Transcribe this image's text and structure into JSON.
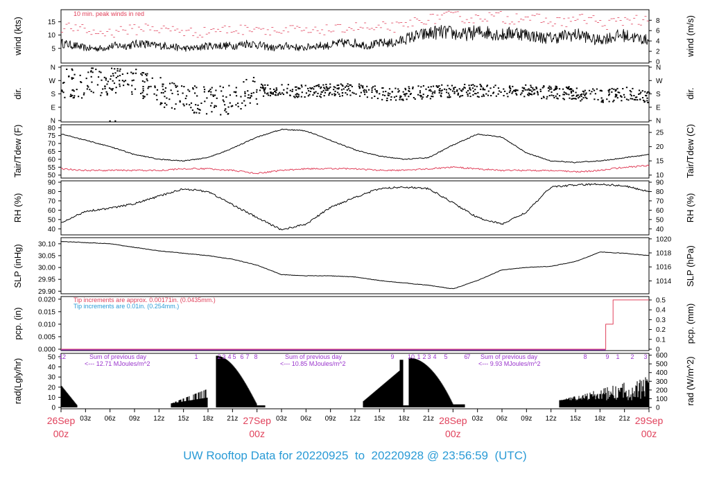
{
  "title": "UW Rooftop Data for 20220925  to  20220928 @ 23:56:59  (UTC)",
  "colors": {
    "title": "#2a9bd6",
    "red": "#e0405a",
    "blue": "#2a9bd6",
    "purple": "#9933cc",
    "black": "#000000"
  },
  "time_axis": {
    "ticks": [
      "03z",
      "06z",
      "09z",
      "12z",
      "15z",
      "18z",
      "21z",
      "03z",
      "06z",
      "09z",
      "12z",
      "15z",
      "18z",
      "21z",
      "03z",
      "06z",
      "09z",
      "12z",
      "15z",
      "18z",
      "21z"
    ],
    "days": [
      {
        "date": "26Sep",
        "hour": "00z"
      },
      {
        "date": "27Sep",
        "hour": "00z"
      },
      {
        "date": "28Sep",
        "hour": "00z"
      },
      {
        "date": "29Sep",
        "hour": "00z"
      }
    ]
  },
  "chart_data": [
    {
      "type": "line",
      "key": "wind",
      "ylabel_left": "wind (kts)",
      "ylabel_right": "wind (m/s)",
      "ticks_left": [
        "5",
        "10",
        "15"
      ],
      "ticks_right": [
        "0",
        "2",
        "4",
        "6",
        "8"
      ],
      "ylim": [
        0,
        19
      ],
      "annotation": "10 min. peak winds in red",
      "series": [
        {
          "values": [
            7,
            6,
            5,
            5,
            6,
            6,
            7,
            6,
            6,
            5,
            5,
            6,
            6,
            6,
            7,
            6,
            5,
            6,
            5,
            6,
            6,
            7,
            7,
            6,
            7,
            7,
            9,
            10,
            11,
            11,
            10,
            11,
            11,
            10,
            11,
            10,
            9,
            9,
            10,
            10,
            8,
            9,
            10,
            9,
            8
          ]
        }
      ]
    },
    {
      "type": "scatter",
      "key": "dir",
      "ylabel_left": "dir.",
      "ylabel_right": "dir.",
      "ticks": [
        "N",
        "E",
        "S",
        "W",
        "N"
      ],
      "ylim": [
        0,
        360
      ]
    },
    {
      "type": "line",
      "key": "temp",
      "ylabel_left": "Tair/Tdew (F)",
      "ylabel_right": "Tair/Tdew (C)",
      "ticks_left": [
        "50",
        "55",
        "60",
        "65",
        "70",
        "75",
        "80"
      ],
      "ticks_right": [
        "10",
        "15",
        "20",
        "25"
      ],
      "ylim": [
        49,
        81
      ],
      "x": [
        0,
        3,
        6,
        9,
        12,
        15,
        18,
        21,
        24,
        27,
        30,
        33,
        36,
        39,
        42,
        45,
        48,
        51,
        54,
        57,
        60,
        63,
        66,
        69,
        72
      ],
      "tair": [
        76,
        72,
        68,
        63,
        60,
        59,
        61,
        67,
        74,
        79,
        78,
        72,
        66,
        62,
        60,
        61,
        69,
        76,
        74,
        64,
        59,
        58,
        59,
        61,
        63
      ],
      "tdew": [
        54,
        53,
        53,
        53,
        53,
        54,
        54,
        53,
        51,
        53,
        54,
        54,
        54,
        53,
        53,
        54,
        55,
        54,
        53,
        53,
        53,
        52,
        53,
        55,
        56
      ]
    },
    {
      "type": "line",
      "key": "rh",
      "ylabel_left": "RH (%)",
      "ylabel_right": "RH (%)",
      "ticks": [
        "40",
        "50",
        "60",
        "70",
        "80",
        "90"
      ],
      "ylim": [
        35,
        90
      ],
      "x": [
        0,
        3,
        6,
        9,
        12,
        15,
        18,
        21,
        24,
        27,
        30,
        33,
        36,
        39,
        42,
        45,
        48,
        51,
        54,
        57,
        60,
        63,
        66,
        69,
        72
      ],
      "values": [
        46,
        59,
        62,
        67,
        75,
        83,
        80,
        66,
        52,
        39,
        45,
        63,
        74,
        83,
        85,
        83,
        68,
        52,
        45,
        58,
        85,
        87,
        88,
        86,
        80
      ]
    },
    {
      "type": "line",
      "key": "slp",
      "ylabel_left": "SLP (inHg)",
      "ylabel_right": "SLP (hPa)",
      "ticks_left": [
        "29.90",
        "29.95",
        "30.00",
        "30.05",
        "30.10"
      ],
      "ticks_right": [
        "1014",
        "1016",
        "1018",
        "1020"
      ],
      "ylim": [
        29.895,
        30.12
      ],
      "x": [
        0,
        3,
        6,
        9,
        12,
        15,
        18,
        21,
        24,
        27,
        30,
        33,
        36,
        39,
        42,
        45,
        48,
        51,
        54,
        57,
        60,
        63,
        66,
        69,
        72
      ],
      "values": [
        30.11,
        30.105,
        30.1,
        30.085,
        30.07,
        30.06,
        30.05,
        30.035,
        30.01,
        29.97,
        29.965,
        29.965,
        29.96,
        29.945,
        29.935,
        29.925,
        29.91,
        29.945,
        29.99,
        30.0,
        30.005,
        30.025,
        30.065,
        30.06,
        30.05
      ]
    },
    {
      "type": "line",
      "key": "pcp",
      "ylabel_left": "pcp. (in)",
      "ylabel_right": "pcp. (mm)",
      "ticks_left": [
        "0.000",
        "0.005",
        "0.010",
        "0.015",
        "0.020"
      ],
      "ticks_right": [
        "0",
        "0.1",
        "0.2",
        "0.3",
        "0.4",
        "0.5"
      ],
      "ylim": [
        0,
        0.0205
      ],
      "notes": [
        "Tip increments are approx. 0.00171in. (0.0435mm.)",
        "Tip increments are 0.01in. (0.254mm.)"
      ],
      "x": [
        0,
        66.7,
        66.7,
        67.6,
        67.6,
        72
      ],
      "values": [
        0,
        0,
        0.01,
        0.01,
        0.0197,
        0.0197
      ]
    },
    {
      "type": "area",
      "key": "rad",
      "ylabel_left": "rad(Lgly/hr)",
      "ylabel_right": "rad (W/m^2)",
      "ticks_left": [
        "0",
        "10",
        "20",
        "30",
        "40",
        "50"
      ],
      "ticks_right": [
        "0",
        "100",
        "200",
        "300",
        "400",
        "500",
        "600"
      ],
      "ylim": [
        0,
        52
      ],
      "day_sums": [
        "Sum of previous day",
        "Sum of previous day",
        "Sum of previous day"
      ],
      "mjoules": [
        "<--- 12.71 MJoules/m^2",
        "<--- 10.85 MJoules/m^2",
        "<--- 9.93 MJoules/m^2"
      ],
      "hour_labels": [
        "12",
        "1",
        "2",
        "3",
        "4",
        "5",
        "6",
        "7",
        "8",
        "9",
        "10",
        "1",
        "2",
        "3",
        "4",
        "5",
        "6",
        "7",
        "8",
        "9",
        "1",
        "2",
        "3",
        "4"
      ]
    }
  ]
}
